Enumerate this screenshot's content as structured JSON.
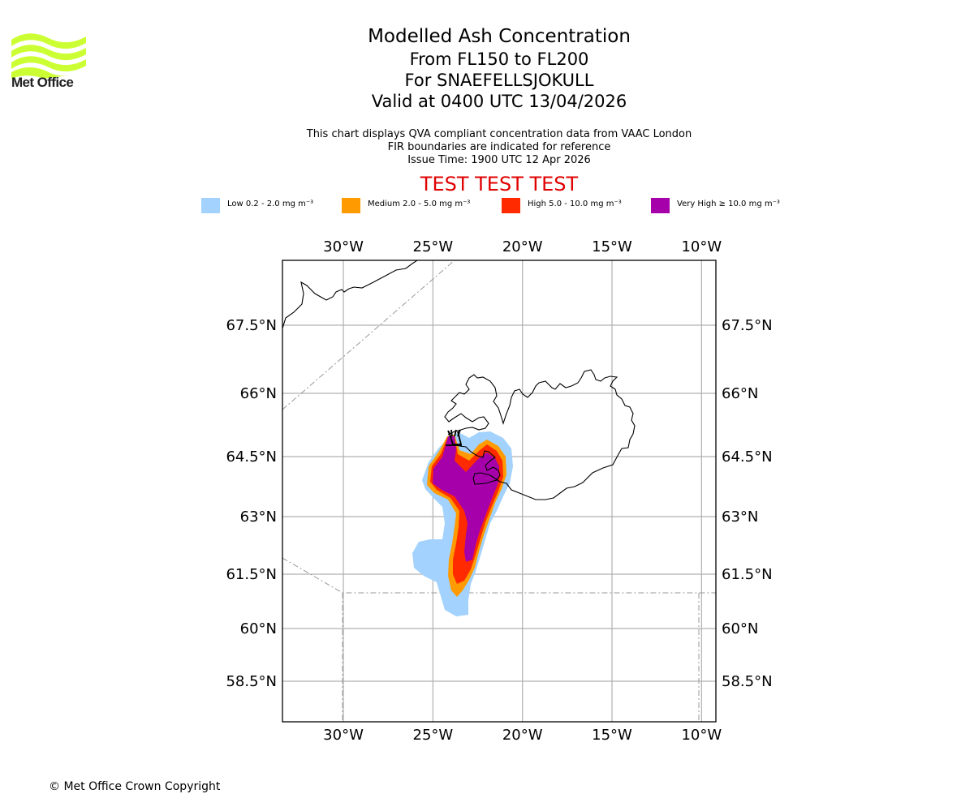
{
  "logo": {
    "text": "Met Office",
    "icon": "met-office-waves-icon",
    "color": "#ccff33"
  },
  "title": {
    "main": "Modelled Ash Concentration",
    "levels": "From FL150 to FL200",
    "volcano": "For SNAEFELLSJOKULL",
    "valid": "Valid at 0400 UTC 13/04/2026"
  },
  "info": {
    "line1": "This chart displays QVA compliant concentration data from VAAC London",
    "line2": "FIR boundaries are indicated for reference",
    "line3": "Issue Time: 1900 UTC 12 Apr 2026"
  },
  "test_banner": "TEST TEST TEST",
  "legend": [
    {
      "label": "Low 0.2 - 2.0 mg m⁻³",
      "color": "#a2d2fd"
    },
    {
      "label": "Medium 2.0 - 5.0 mg m⁻³",
      "color": "#ff9a00"
    },
    {
      "label": "High 5.0 - 10.0 mg m⁻³",
      "color": "#ff2a00"
    },
    {
      "label": "Very High ≥ 10.0 mg m⁻³",
      "color": "#a500aa"
    }
  ],
  "chart_data": {
    "type": "map",
    "title": "Modelled Ash Concentration",
    "region": "Iceland / North Atlantic",
    "lon_range": [
      -33.4,
      -9.2
    ],
    "lat_range": [
      57.2,
      68.6
    ],
    "lon_ticks": [
      "30°W",
      "25°W",
      "20°W",
      "15°W",
      "10°W"
    ],
    "lon_tick_values": [
      -30,
      -25,
      -20,
      -15,
      -10
    ],
    "lat_ticks": [
      "67.5°N",
      "66°N",
      "64.5°N",
      "63°N",
      "61.5°N",
      "60°N",
      "58.5°N"
    ],
    "lat_tick_values": [
      67.5,
      66,
      64.5,
      63,
      61.5,
      60,
      58.5
    ],
    "grid": true,
    "volcano": {
      "name": "SNAEFELLSJOKULL",
      "lon": -23.8,
      "lat": 64.8
    },
    "ash_levels": [
      "Low",
      "Medium",
      "High",
      "Very High"
    ],
    "ash_plume_extent": {
      "lon": [
        -26.1,
        -21.0
      ],
      "lat": [
        60.3,
        64.9
      ]
    }
  },
  "copyright": "© Met Office Crown Copyright"
}
